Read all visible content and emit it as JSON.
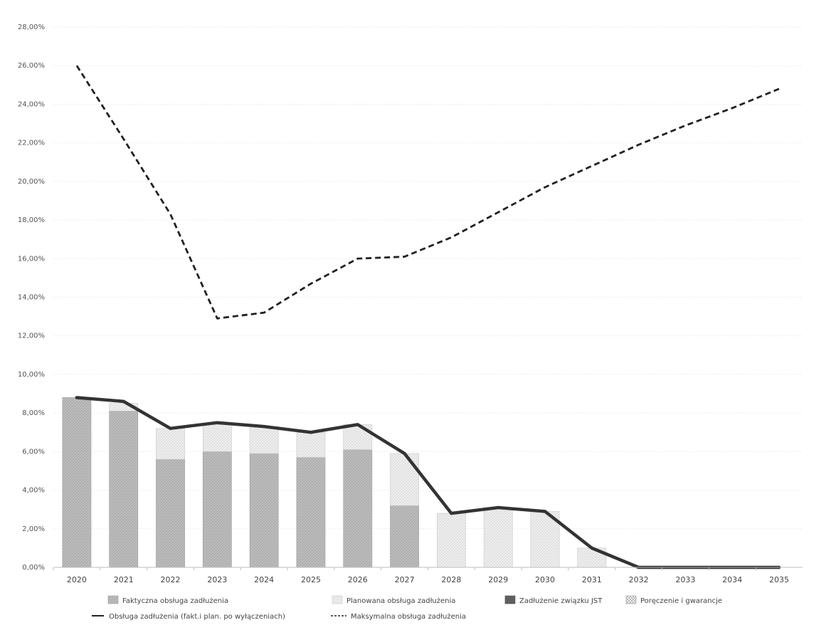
{
  "chart_data": {
    "type": "bar",
    "title": "",
    "xlabel": "",
    "ylabel": "",
    "y_ticks": [
      "0,00%",
      "2,00%",
      "4,00%",
      "6,00%",
      "8,00%",
      "10,00%",
      "12,00%",
      "14,00%",
      "16,00%",
      "18,00%",
      "20,00%",
      "22,00%",
      "24,00%",
      "26,00%",
      "28,00%"
    ],
    "ylim": [
      0,
      28
    ],
    "grid": true,
    "legend_position": "bottom",
    "categories": [
      "2020",
      "2021",
      "2022",
      "2023",
      "2024",
      "2025",
      "2026",
      "2027",
      "2028",
      "2029",
      "2030",
      "2031",
      "2032",
      "2033",
      "2034",
      "2035"
    ],
    "stacked_series": [
      {
        "name": "Faktyczna obsługa zadłużenia",
        "color": "#b9b9b9",
        "values": [
          8.8,
          8.1,
          5.6,
          6.0,
          5.9,
          5.7,
          6.1,
          3.2,
          0,
          0,
          0,
          0,
          0,
          0,
          0,
          0
        ]
      },
      {
        "name": "Planowana obsługa zadłużenia",
        "color": "#ebebeb",
        "values": [
          0,
          0.4,
          1.6,
          1.4,
          1.4,
          1.3,
          1.3,
          2.7,
          2.8,
          3.1,
          2.9,
          1.0,
          0,
          0,
          0,
          0
        ]
      },
      {
        "name": "Zadłużenie związku JST",
        "color": "#6e6e6e",
        "values": [
          0,
          0,
          0,
          0,
          0,
          0,
          0,
          0,
          0,
          0,
          0,
          0,
          0,
          0,
          0,
          0
        ]
      },
      {
        "name": "Poręczenie i gwarancje",
        "color": "#d4d4d4",
        "values": [
          0,
          0,
          0,
          0,
          0,
          0,
          0,
          0,
          0,
          0,
          0,
          0,
          0,
          0,
          0,
          0
        ]
      }
    ],
    "line_series": [
      {
        "name": "Obsługa zadłużenia (fakt.i plan. po wyłączeniach)",
        "style": "solid",
        "color": "#333333",
        "values": [
          8.8,
          8.6,
          7.2,
          7.5,
          7.3,
          7.0,
          7.4,
          5.9,
          2.8,
          3.1,
          2.9,
          1.0,
          0,
          0,
          0,
          0
        ]
      },
      {
        "name": "Maksymalna obsługa zadłużenia",
        "style": "dashed",
        "color": "#222222",
        "values": [
          26.0,
          22.2,
          18.3,
          12.9,
          13.2,
          14.7,
          16.0,
          16.1,
          17.1,
          18.4,
          19.7,
          20.8,
          21.9,
          22.9,
          23.8,
          24.8
        ]
      }
    ]
  }
}
